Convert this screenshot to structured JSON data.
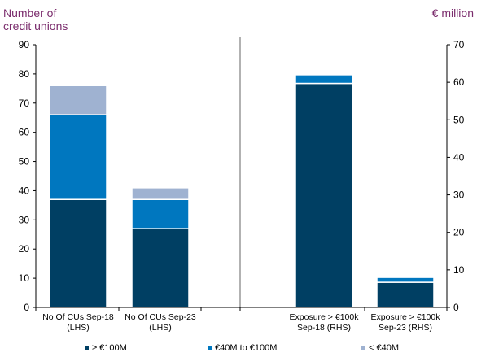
{
  "colors": {
    "title": "#7b2d6d",
    "dark": "#003f63",
    "mid": "#0077bf",
    "light": "#9fb2d1",
    "axis": "#000000"
  },
  "chart_data": {
    "type": "bar",
    "stacked": true,
    "left_axis_title": [
      "Number of",
      "credit unions"
    ],
    "right_axis_title": "€ million",
    "left_axis": {
      "min": 0,
      "max": 90,
      "ticks": [
        0,
        10,
        20,
        30,
        40,
        50,
        60,
        70,
        80,
        90
      ]
    },
    "right_axis": {
      "min": 0,
      "max": 70,
      "ticks": [
        0,
        10,
        20,
        30,
        40,
        50,
        60,
        70
      ]
    },
    "categories": [
      {
        "label": [
          "No Of CUs Sep-18",
          "(LHS)"
        ],
        "axis": "left"
      },
      {
        "label": [
          "No Of CUs Sep-23",
          "(LHS)"
        ],
        "axis": "left"
      },
      {
        "label": [
          "Exposure > €100k",
          "Sep-18 (RHS)"
        ],
        "axis": "right"
      },
      {
        "label": [
          "Exposure > €100k",
          "Sep-23 (RHS)"
        ],
        "axis": "right"
      }
    ],
    "series": [
      {
        "name": "≥ €100M",
        "color": "#003f63",
        "values": [
          37,
          27,
          59.7,
          6.7
        ]
      },
      {
        "name": "€40M to €100M",
        "color": "#0077bf",
        "values": [
          29,
          10,
          2.3,
          1.3
        ]
      },
      {
        "name": "< €40M",
        "color": "#9fb2d1",
        "values": [
          10,
          4,
          0,
          0
        ]
      }
    ],
    "legend": {
      "position": "bottom"
    },
    "grid": false
  }
}
